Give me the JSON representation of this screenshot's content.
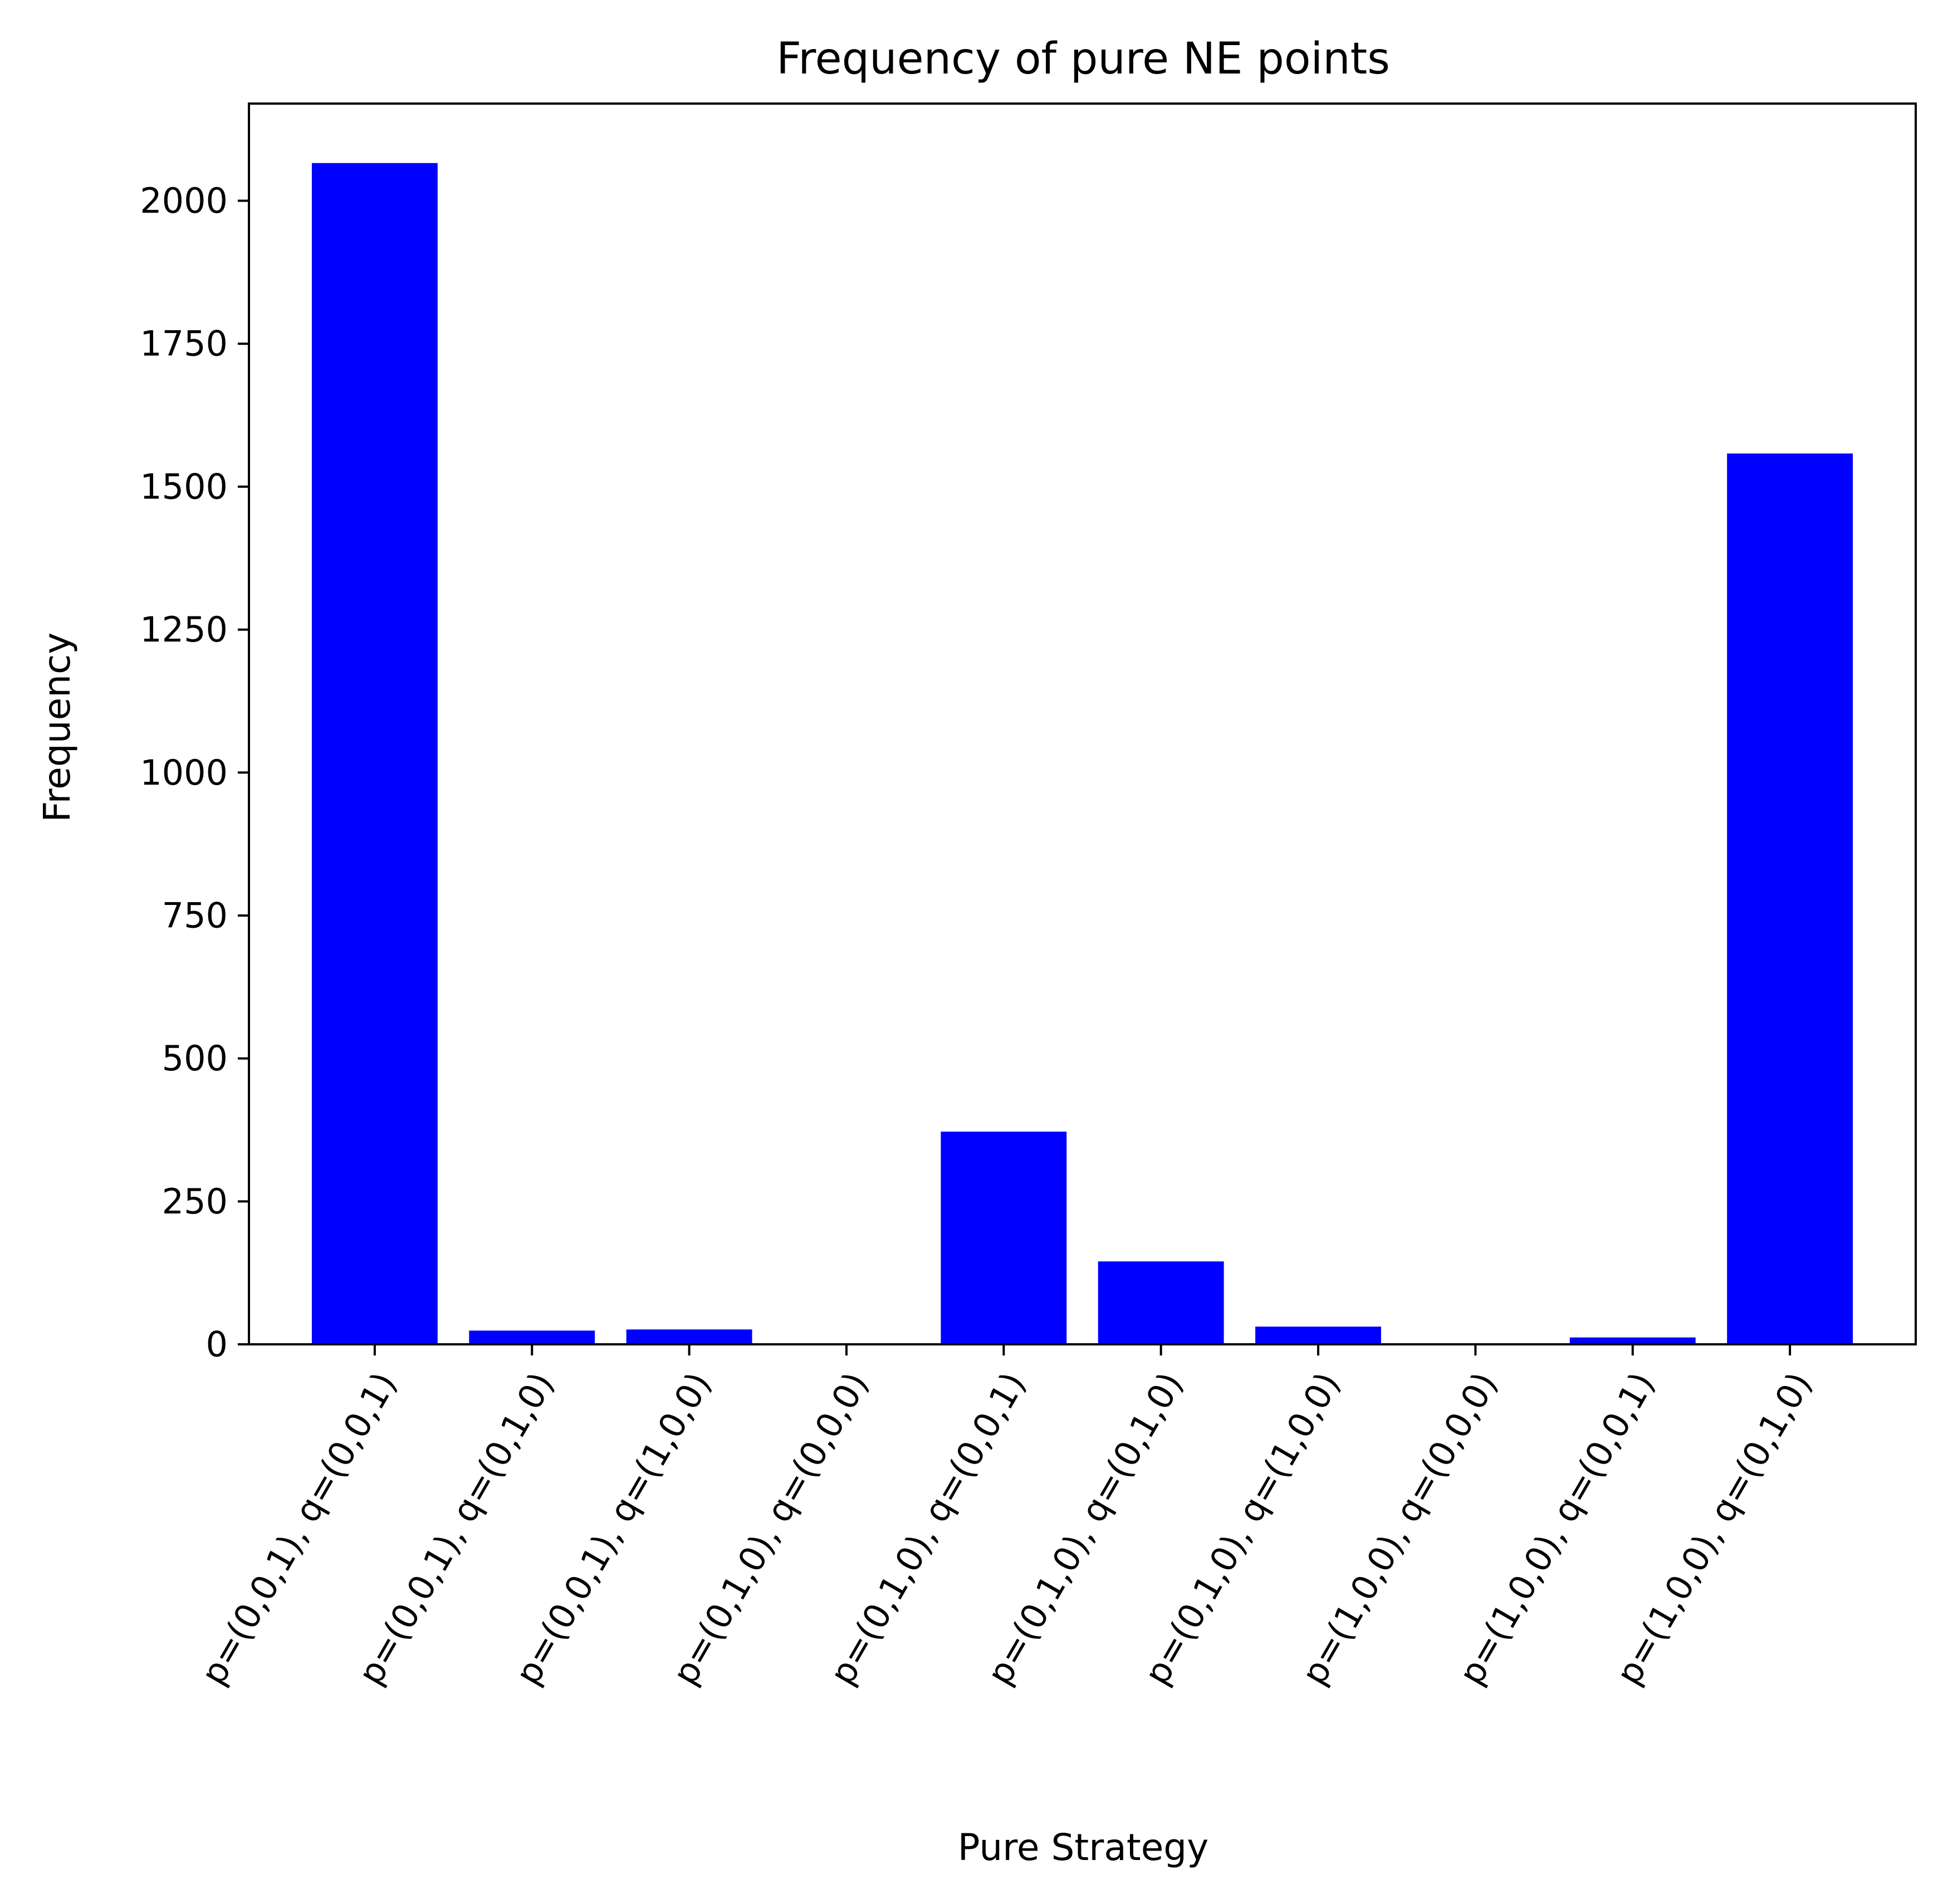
{
  "chart_data": {
    "type": "bar",
    "title": "Frequency of pure NE points",
    "xlabel": "Pure Strategy",
    "ylabel": "Frequency",
    "categories": [
      "p=(0,0,1), q=(0,0,1)",
      "p=(0,0,1), q=(0,1,0)",
      "p=(0,0,1), q=(1,0,0)",
      "p=(0,1,0), q=(0,0,0)",
      "p=(0,1,0), q=(0,0,1)",
      "p=(0,1,0), q=(0,1,0)",
      "p=(0,1,0), q=(1,0,0)",
      "p=(1,0,0), q=(0,0,0)",
      "p=(1,0,0), q=(0,0,1)",
      "p=(1,0,0), q=(0,1,0)"
    ],
    "values": [
      2066,
      24,
      26,
      0,
      372,
      145,
      31,
      0,
      12,
      1558
    ],
    "ylim": [
      0,
      2170
    ],
    "yticks": [
      0,
      250,
      500,
      750,
      1000,
      1250,
      1500,
      1750,
      2000
    ],
    "bar_color": "#0000ff",
    "grid": false,
    "legend": "none"
  }
}
